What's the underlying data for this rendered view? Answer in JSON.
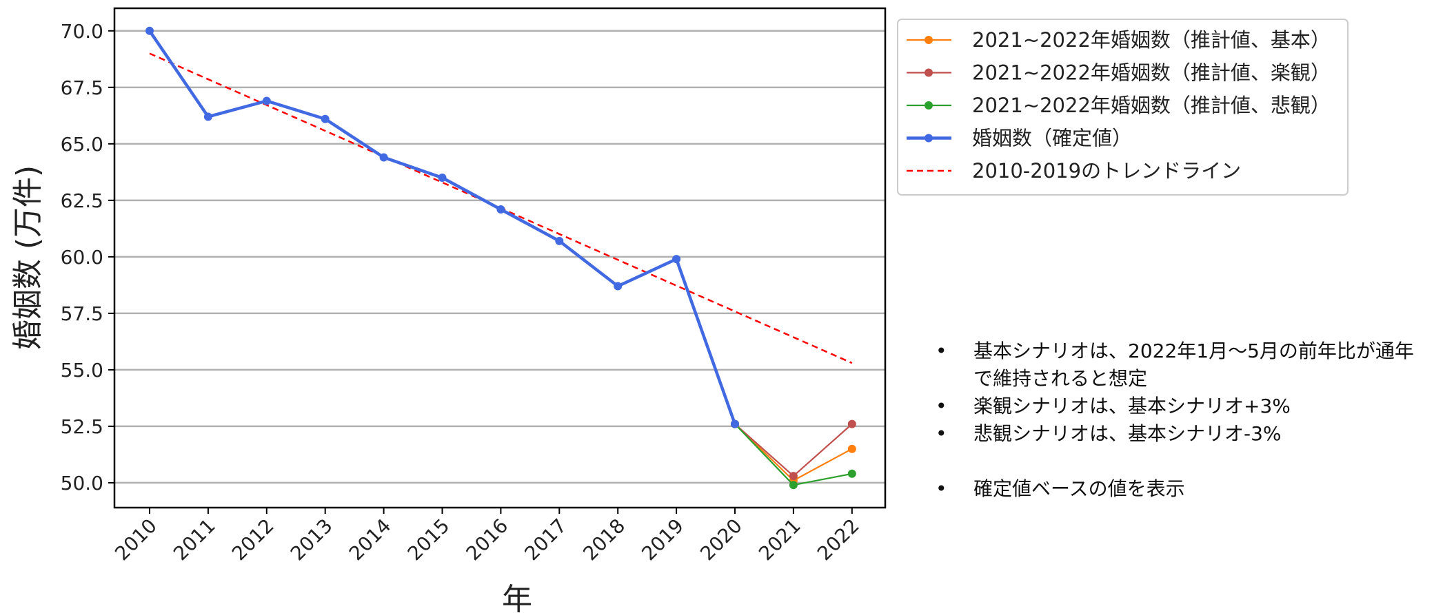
{
  "chart_data": {
    "type": "line",
    "xlabel": "年",
    "ylabel": "婚姻数 (万件)",
    "ylim": [
      48.9,
      71.0
    ],
    "yticks": [
      50.0,
      52.5,
      55.0,
      57.5,
      60.0,
      62.5,
      65.0,
      67.5,
      70.0
    ],
    "grid": "horizontal",
    "legend_position": "top-right, outside plot",
    "categories": [
      "2010",
      "2011",
      "2012",
      "2013",
      "2014",
      "2015",
      "2016",
      "2017",
      "2018",
      "2019",
      "2020",
      "2021",
      "2022"
    ],
    "series": [
      {
        "name": "2021~2022年婚姻数（推計値、基本）",
        "color": "#ff7f0e",
        "x": [
          "2020",
          "2021",
          "2022"
        ],
        "values": [
          52.6,
          50.1,
          51.5
        ]
      },
      {
        "name": "2021~2022年婚姻数（推計値、楽観）",
        "color": "#c0504d",
        "x": [
          "2020",
          "2021",
          "2022"
        ],
        "values": [
          52.6,
          50.3,
          52.6
        ]
      },
      {
        "name": "2021~2022年婚姻数（推計値、悲観）",
        "color": "#2ca02c",
        "x": [
          "2020",
          "2021",
          "2022"
        ],
        "values": [
          52.6,
          49.9,
          50.4
        ]
      },
      {
        "name": "婚姻数（確定値）",
        "color": "#4169e1",
        "x": [
          "2010",
          "2011",
          "2012",
          "2013",
          "2014",
          "2015",
          "2016",
          "2017",
          "2018",
          "2019",
          "2020"
        ],
        "values": [
          70.0,
          66.2,
          66.9,
          66.1,
          64.4,
          63.5,
          62.1,
          60.7,
          58.7,
          59.9,
          52.6
        ]
      },
      {
        "name": "2010-2019のトレンドライン",
        "color": "#ff0000",
        "style": "dashed",
        "x": [
          "2010",
          "2022"
        ],
        "values": [
          69.0,
          55.3
        ]
      }
    ]
  },
  "notes": [
    "基本シナリオは、2022年1月～5月の前年比が通年で維持されると想定",
    "楽観シナリオは、基本シナリオ+3%",
    "悲観シナリオは、基本シナリオ-3%",
    "確定値ベースの値を表示"
  ]
}
